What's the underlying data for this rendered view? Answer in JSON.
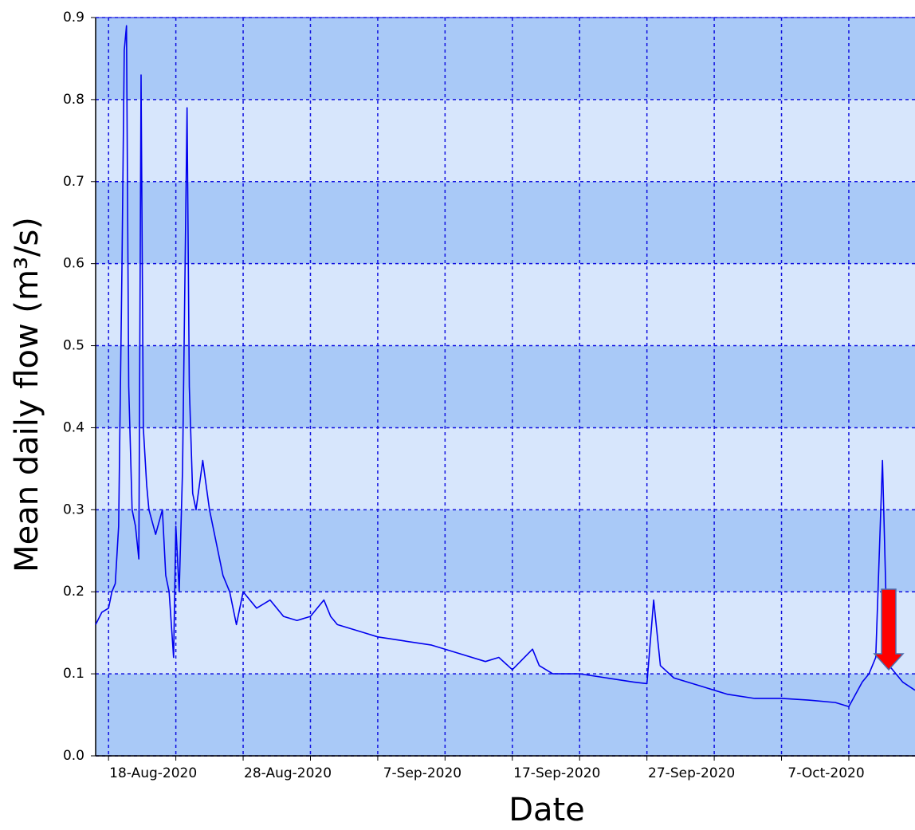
{
  "chart_data": {
    "type": "line",
    "x_label": "Date",
    "y_label": "Mean daily flow (m³/s)",
    "xlim": [
      "2020-08-17T01:00",
      "2020-10-16T22:00"
    ],
    "ylim": [
      0,
      0.9
    ],
    "yticks": [
      {
        "value": 0,
        "label": "0.0"
      },
      0.1,
      0.2,
      0.3,
      0.4,
      0.5,
      0.6,
      0.7,
      0.8,
      0.9
    ],
    "xticks": [
      {
        "value": "2020-08-18T00:00",
        "label": "18-Aug-2020"
      },
      {
        "value": "2020-08-23T00:00",
        "label": null
      },
      {
        "value": "2020-08-28T00:00",
        "label": "28-Aug-2020"
      },
      {
        "value": "2020-09-02T00:00",
        "label": null
      },
      {
        "value": "2020-09-07T00:00",
        "label": "7-Sep-2020"
      },
      {
        "value": "2020-09-12T00:00",
        "label": null
      },
      {
        "value": "2020-09-17T00:00",
        "label": "17-Sep-2020"
      },
      {
        "value": "2020-09-22T00:00",
        "label": null
      },
      {
        "value": "2020-09-27T00:00",
        "label": "27-Sep-2020"
      },
      {
        "value": "2020-10-02T00:00",
        "label": null
      },
      {
        "value": "2020-10-07T00:00",
        "label": "7-Oct-2020"
      },
      {
        "value": "2020-10-12T00:00",
        "label": null
      }
    ],
    "grid": true,
    "band_colors": [
      "#a9c9f7",
      "#d7e6fc"
    ],
    "series": [
      {
        "name": "Mean daily flow",
        "color": "#0000ee",
        "x": [
          "2020-08-17T01:00",
          "2020-08-17T12:00",
          "2020-08-18T00:00",
          "2020-08-18T06:00",
          "2020-08-18T12:00",
          "2020-08-18T18:00",
          "2020-08-19T00:00",
          "2020-08-19T04:00",
          "2020-08-19T08:00",
          "2020-08-19T12:00",
          "2020-08-19T18:00",
          "2020-08-20T00:00",
          "2020-08-20T06:00",
          "2020-08-20T10:00",
          "2020-08-20T14:00",
          "2020-08-20T20:00",
          "2020-08-21T00:00",
          "2020-08-21T12:00",
          "2020-08-22T00:00",
          "2020-08-22T06:00",
          "2020-08-22T12:00",
          "2020-08-22T20:00",
          "2020-08-23T00:00",
          "2020-08-23T06:00",
          "2020-08-23T12:00",
          "2020-08-23T20:00",
          "2020-08-24T00:00",
          "2020-08-24T06:00",
          "2020-08-24T12:00",
          "2020-08-25T00:00",
          "2020-08-25T12:00",
          "2020-08-26T00:00",
          "2020-08-26T12:00",
          "2020-08-27T00:00",
          "2020-08-27T12:00",
          "2020-08-28T00:00",
          "2020-08-29T00:00",
          "2020-08-30T00:00",
          "2020-08-31T00:00",
          "2020-09-01T00:00",
          "2020-09-02T00:00",
          "2020-09-03T00:00",
          "2020-09-03T12:00",
          "2020-09-04T00:00",
          "2020-09-05T00:00",
          "2020-09-06T00:00",
          "2020-09-07T00:00",
          "2020-09-09T00:00",
          "2020-09-11T00:00",
          "2020-09-13T00:00",
          "2020-09-15T00:00",
          "2020-09-16T00:00",
          "2020-09-17T00:00",
          "2020-09-18T12:00",
          "2020-09-19T00:00",
          "2020-09-20T00:00",
          "2020-09-22T00:00",
          "2020-09-24T00:00",
          "2020-09-26T00:00",
          "2020-09-27T00:00",
          "2020-09-27T12:00",
          "2020-09-28T00:00",
          "2020-09-29T00:00",
          "2020-10-01T00:00",
          "2020-10-03T00:00",
          "2020-10-05T00:00",
          "2020-10-07T00:00",
          "2020-10-09T00:00",
          "2020-10-11T00:00",
          "2020-10-12T00:00",
          "2020-10-13T00:00",
          "2020-10-13T12:00",
          "2020-10-14T00:00",
          "2020-10-14T12:00",
          "2020-10-14T18:00",
          "2020-10-15T00:00",
          "2020-10-16T00:00",
          "2020-10-16T22:00"
        ],
        "values": [
          0.16,
          0.175,
          0.18,
          0.2,
          0.21,
          0.28,
          0.6,
          0.86,
          0.89,
          0.45,
          0.3,
          0.28,
          0.24,
          0.83,
          0.4,
          0.33,
          0.3,
          0.27,
          0.3,
          0.22,
          0.2,
          0.12,
          0.28,
          0.2,
          0.35,
          0.79,
          0.45,
          0.32,
          0.3,
          0.36,
          0.3,
          0.26,
          0.22,
          0.2,
          0.16,
          0.2,
          0.18,
          0.19,
          0.17,
          0.165,
          0.17,
          0.19,
          0.17,
          0.16,
          0.155,
          0.15,
          0.145,
          0.14,
          0.135,
          0.125,
          0.115,
          0.12,
          0.105,
          0.13,
          0.11,
          0.1,
          0.1,
          0.095,
          0.09,
          0.088,
          0.19,
          0.11,
          0.095,
          0.085,
          0.075,
          0.07,
          0.07,
          0.068,
          0.065,
          0.06,
          0.09,
          0.1,
          0.12,
          0.36,
          0.2,
          0.11,
          0.09,
          0.08
        ]
      }
    ]
  }
}
